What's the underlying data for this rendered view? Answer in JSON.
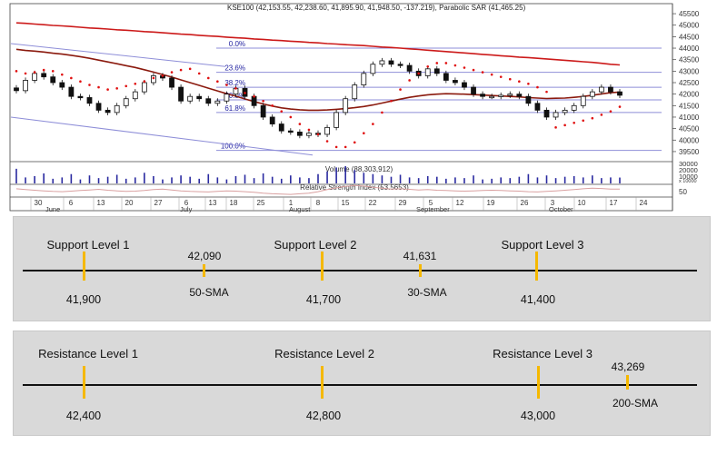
{
  "chart_header": "KSE100 (42,153.55, 42,238.60, 41,895.90, 41,948.50, -137.219), Parabolic SAR (41,465.25)",
  "y_ticks": [
    "45500",
    "45000",
    "44500",
    "44000",
    "43500",
    "43000",
    "42500",
    "42000",
    "41500",
    "41000",
    "40500",
    "40000",
    "39500"
  ],
  "fib_labels": [
    "0.0%",
    "23.6%",
    "38.2%",
    "50.0%",
    "61.8%",
    "100.0%"
  ],
  "volume_label": "Volume (88,303,912)",
  "volume_ticks": [
    "30000",
    "20000",
    "10000",
    "x 10000"
  ],
  "rsi_label": "Relative Strength Index (53.5653)",
  "rsi_tick": "50",
  "day_ticks": [
    "30",
    "6",
    "13",
    "20",
    "27",
    "6",
    "13",
    "18",
    "25",
    "1",
    "8",
    "15",
    "22",
    "29",
    "5",
    "12",
    "19",
    "26",
    "3",
    "10",
    "17",
    "24"
  ],
  "month_labels": [
    "June",
    "July",
    "August",
    "September",
    "October"
  ],
  "colors": {
    "candle": "#111111",
    "sma_long": "#cc1a1a",
    "sma_short": "#8b1a0e",
    "sar_dot": "#e01010",
    "fib_line": "#8e8ed8",
    "volume_bar": "#2a2aa0",
    "rsi_line": "#d9a0a0",
    "panel_bg": "#d9d9d9",
    "level_tick": "#f5b800"
  },
  "chart_data": {
    "type": "line",
    "title": "KSE100",
    "series": [
      {
        "name": "KSE100",
        "values": [
          42150,
          42600,
          42900,
          42750,
          42500,
          42300,
          41900,
          41850,
          41600,
          41300,
          41200,
          41500,
          41800,
          42100,
          42500,
          42800,
          42700,
          42300,
          41700,
          41900,
          41800,
          41600,
          41700,
          42000,
          42250,
          41900,
          41500,
          41000,
          40700,
          40400,
          40350,
          40200,
          40300,
          40250,
          40550,
          41200,
          41800,
          42400,
          42900,
          43300,
          43450,
          43300,
          43250,
          43000,
          42800,
          43100,
          42900,
          42600,
          42500,
          42300,
          42000,
          41900,
          41900,
          41950,
          42000,
          41900,
          41600,
          41300,
          41000,
          41200,
          41300,
          41500,
          41900,
          42100,
          42300,
          42100,
          41950
        ]
      },
      {
        "name": "Parabolic SAR",
        "values": [
          43000,
          42900,
          42950,
          43050,
          43000,
          42850,
          42700,
          42550,
          42400,
          42300,
          42200,
          42250,
          42350,
          42450,
          42550,
          42700,
          42800,
          42950,
          43050,
          43100,
          42900,
          42700,
          42550,
          42400,
          42250,
          42050,
          41900,
          41700,
          41500,
          41250,
          41000,
          40700,
          40450,
          40250,
          39950,
          39700,
          39700,
          39900,
          40300,
          40700,
          41200,
          41700,
          42200,
          42600,
          42900,
          43200,
          43350,
          43350,
          43250,
          43150,
          43050,
          42950,
          42850,
          42750,
          42650,
          42550,
          42450,
          42300,
          42100,
          40550,
          40650,
          40750,
          40850,
          40950,
          41100,
          41250,
          41450
        ]
      },
      {
        "name": "50-SMA",
        "values": [
          43950,
          43900,
          43870,
          43830,
          43780,
          43740,
          43690,
          43630,
          43560,
          43480,
          43400,
          43320,
          43240,
          43160,
          43060,
          42960,
          42850,
          42740,
          42620,
          42500,
          42380,
          42260,
          42140,
          42020,
          41910,
          41790,
          41680,
          41570,
          41480,
          41400,
          41350,
          41320,
          41300,
          41300,
          41310,
          41340,
          41370,
          41410,
          41460,
          41530,
          41610,
          41700,
          41780,
          41860,
          41920,
          41970,
          42000,
          42020,
          42010,
          42000,
          41980,
          41960,
          41940,
          41920,
          41900,
          41880,
          41850,
          41830,
          41810,
          41820,
          41830,
          41860,
          41900,
          41950,
          42010,
          42060,
          42090
        ]
      },
      {
        "name": "200-SMA",
        "values": [
          45100,
          45080,
          45050,
          45020,
          44990,
          44970,
          44940,
          44910,
          44880,
          44860,
          44830,
          44800,
          44780,
          44750,
          44720,
          44700,
          44670,
          44640,
          44610,
          44590,
          44560,
          44530,
          44510,
          44480,
          44450,
          44430,
          44400,
          44380,
          44350,
          44330,
          44300,
          44280,
          44250,
          44230,
          44200,
          44180,
          44150,
          44130,
          44110,
          44080,
          44050,
          44030,
          44000,
          43970,
          43940,
          43910,
          43880,
          43850,
          43820,
          43790,
          43760,
          43730,
          43700,
          43670,
          43640,
          43610,
          43590,
          43560,
          43530,
          43500,
          43470,
          43440,
          43410,
          43380,
          43340,
          43300,
          43269
        ]
      }
    ],
    "fibonacci": [
      {
        "label": "0.0%",
        "value": 44000
      },
      {
        "label": "23.6%",
        "value": 42950
      },
      {
        "label": "38.2%",
        "value": 42300
      },
      {
        "label": "50.0%",
        "value": 41750
      },
      {
        "label": "61.8%",
        "value": 41200
      },
      {
        "label": "100.0%",
        "value": 39550
      }
    ],
    "ylim": [
      39300,
      45700
    ],
    "volume": [
      22000,
      9000,
      11000,
      15000,
      7000,
      9000,
      14000,
      6000,
      12000,
      8000,
      10000,
      13000,
      7000,
      9000,
      16000,
      11000,
      6000,
      9000,
      12000,
      10000,
      7000,
      14000,
      9000,
      6000,
      11000,
      13000,
      8000,
      15000,
      10000,
      7000,
      12000,
      9000,
      8000,
      14000,
      18000,
      24000,
      26000,
      20000,
      16000,
      14000,
      12000,
      10000,
      13000,
      9000,
      8000,
      11000,
      10000,
      7000,
      9000,
      8000,
      12000,
      6000,
      7000,
      9000,
      8000,
      10000,
      14000,
      9000,
      12000,
      8000,
      10000,
      11000,
      9000,
      12000,
      8000,
      9000,
      8800
    ],
    "rsi": [
      55,
      52,
      50,
      48,
      46,
      45,
      47,
      49,
      51,
      53,
      50,
      48,
      46,
      47,
      49,
      52,
      54,
      51,
      48,
      46,
      45,
      44,
      46,
      48,
      47,
      45,
      43,
      40,
      38,
      37,
      36,
      38,
      40,
      45,
      52,
      58,
      63,
      66,
      64,
      60,
      57,
      54,
      55,
      53,
      51,
      52,
      50,
      49,
      48,
      47,
      48,
      49,
      50,
      49,
      48,
      47,
      45,
      44,
      46,
      48,
      50,
      52,
      55,
      57,
      56,
      54,
      53.5653
    ]
  },
  "support": {
    "levels": [
      {
        "title": "Support Level 1",
        "value": "41,900"
      },
      {
        "title": "Support Level 2",
        "value": "41,700"
      },
      {
        "title": "Support Level 3",
        "value": "41,400"
      }
    ],
    "smas": [
      {
        "value": "42,090",
        "name": "50-SMA"
      },
      {
        "value": "41,631",
        "name": "30-SMA"
      }
    ]
  },
  "resistance": {
    "levels": [
      {
        "title": "Resistance Level 1",
        "value": "42,400"
      },
      {
        "title": "Resistance Level 2",
        "value": "42,800"
      },
      {
        "title": "Resistance Level 3",
        "value": "43,000"
      }
    ],
    "smas": [
      {
        "value": "43,269",
        "name": "200-SMA"
      }
    ]
  }
}
